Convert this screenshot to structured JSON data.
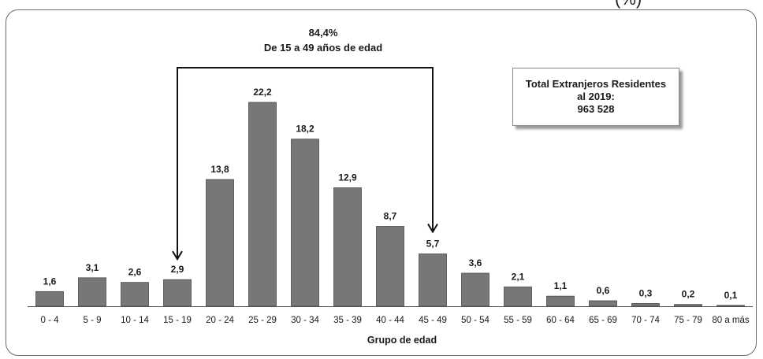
{
  "chart_data": {
    "type": "bar",
    "title": "",
    "xlabel": "Grupo de edad",
    "ylabel": "",
    "ylim": [
      0,
      25
    ],
    "grid": false,
    "categories": [
      "0 - 4",
      "5 - 9",
      "10 - 14",
      "15 - 19",
      "20 - 24",
      "25 - 29",
      "30 - 34",
      "35 - 39",
      "40 - 44",
      "45 - 49",
      "50 - 54",
      "55 - 59",
      "60 - 64",
      "65 - 69",
      "70 - 74",
      "75 - 79",
      "80 a más"
    ],
    "values": [
      1.6,
      3.1,
      2.6,
      2.9,
      13.8,
      22.2,
      18.2,
      12.9,
      8.7,
      5.7,
      3.6,
      2.1,
      1.1,
      0.6,
      0.3,
      0.2,
      0.1
    ],
    "value_labels": [
      "1,6",
      "3,1",
      "2,6",
      "2,9",
      "13,8",
      "22,2",
      "18,2",
      "12,9",
      "8,7",
      "5,7",
      "3,6",
      "2,1",
      "1,1",
      "0,6",
      "0,3",
      "0,2",
      "0,1"
    ],
    "annotation": {
      "percent": "84,4%",
      "text": "De 15 a 49 años de edad",
      "from_category": "15 - 19",
      "to_category": "45 - 49"
    },
    "total_box": {
      "line1": "Total Extranjeros Residentes",
      "line2": "al 2019:",
      "line3": "963 528"
    },
    "colors": {
      "bar": "#777777",
      "bar_border": "#4a4a4a"
    }
  },
  "corner_mark": "(%)"
}
